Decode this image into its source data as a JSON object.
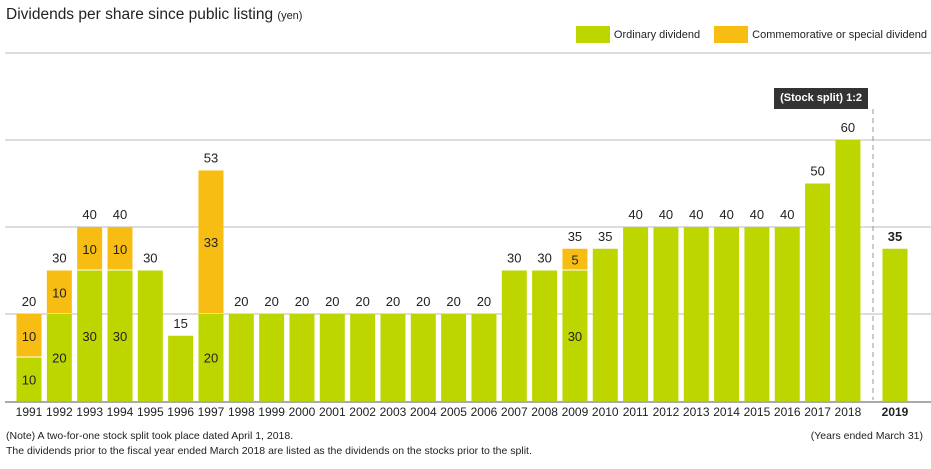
{
  "chart_data": {
    "type": "bar",
    "stacked": true,
    "title": "Dividends per share since public listing",
    "unit_label": "(yen)",
    "categories": [
      "1991",
      "1992",
      "1993",
      "1994",
      "1995",
      "1996",
      "1997",
      "1998",
      "1999",
      "2000",
      "2001",
      "2002",
      "2003",
      "2004",
      "2005",
      "2006",
      "2007",
      "2008",
      "2009",
      "2010",
      "2011",
      "2012",
      "2013",
      "2014",
      "2015",
      "2016",
      "2017",
      "2018",
      "2019"
    ],
    "series": [
      {
        "name": "Ordinary dividend",
        "color": "#bed600",
        "values": [
          10,
          20,
          30,
          30,
          30,
          15,
          20,
          20,
          20,
          20,
          20,
          20,
          20,
          20,
          20,
          20,
          30,
          30,
          30,
          35,
          40,
          40,
          40,
          40,
          40,
          40,
          50,
          60,
          35
        ]
      },
      {
        "name": "Commemorative or special dividend",
        "color": "#f8bd12",
        "values": [
          10,
          10,
          10,
          10,
          0,
          0,
          33,
          0,
          0,
          0,
          0,
          0,
          0,
          0,
          0,
          0,
          0,
          0,
          5,
          0,
          0,
          0,
          0,
          0,
          0,
          0,
          0,
          0,
          0
        ]
      }
    ],
    "totals": [
      20,
      30,
      40,
      40,
      30,
      15,
      53,
      20,
      20,
      20,
      20,
      20,
      20,
      20,
      20,
      20,
      30,
      30,
      35,
      35,
      40,
      40,
      40,
      40,
      40,
      40,
      50,
      60,
      35
    ],
    "ylim": [
      0,
      80
    ],
    "gridlines": [
      20,
      40,
      60,
      80
    ],
    "legend_position": "top-right",
    "annotation": "(Stock split) 1:2",
    "highlight_last": "2019"
  },
  "notes": {
    "line1": "(Note) A two-for-one stock split took place dated April 1, 2018.",
    "line2": "The dividends prior to the fiscal year ended March 2018 are listed as the dividends on the stocks prior to the split.",
    "years_ended": "(Years ended March 31)"
  }
}
